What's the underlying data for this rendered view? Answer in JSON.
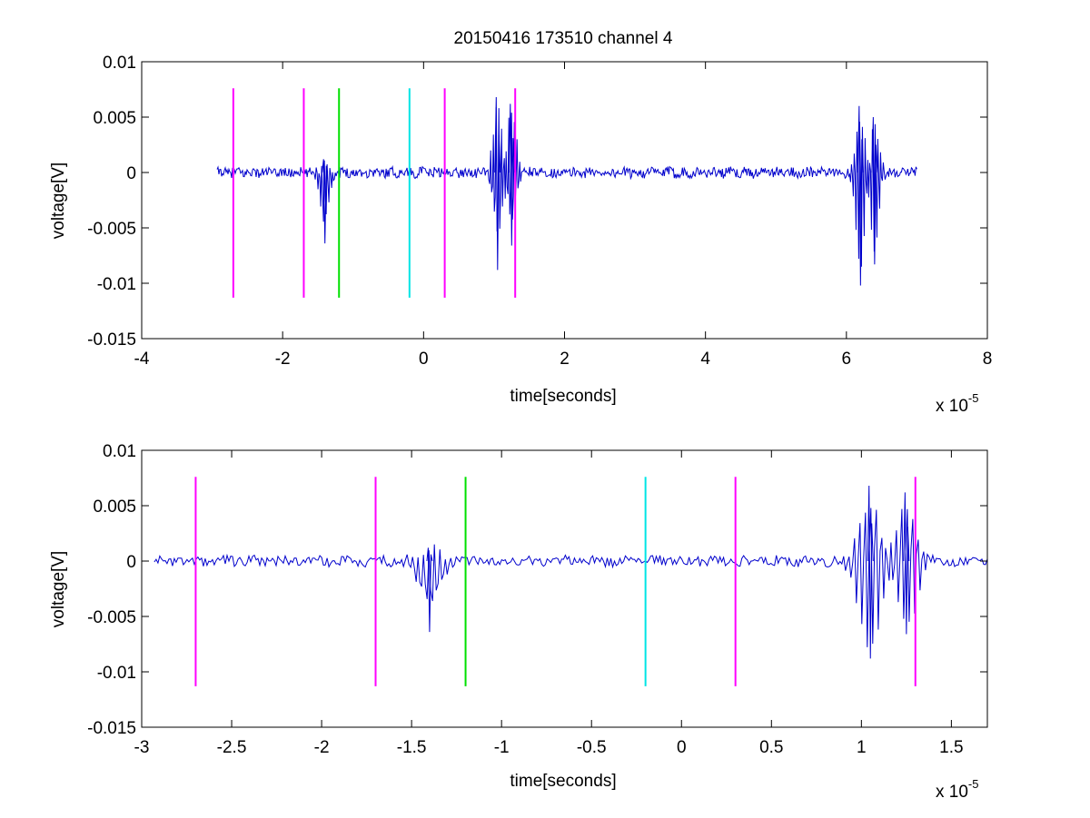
{
  "title": "20150416 173510 channel 4",
  "colors": {
    "signal": "#0000cc",
    "magenta": "#ff00ff",
    "green": "#00e000",
    "cyan": "#00e5e5",
    "axis": "#000000"
  },
  "chart_data": [
    {
      "type": "line",
      "title": "20150416 173510 channel 4",
      "xlabel": "time[seconds]",
      "ylabel": "voltage[V]",
      "x_multiplier_label": "x 10",
      "x_multiplier_exp": "-5",
      "xlim": [
        -4e-05,
        8e-05
      ],
      "ylim": [
        -0.015,
        0.01
      ],
      "xticks": [
        -4,
        -2,
        0,
        2,
        4,
        6,
        8
      ],
      "xtick_labels": [
        "-4",
        "-2",
        "0",
        "2",
        "4",
        "6",
        "8"
      ],
      "yticks": [
        0.01,
        0.005,
        0,
        -0.005,
        -0.01,
        -0.015
      ],
      "ytick_labels": [
        "0.01",
        "0.005",
        "0",
        "-0.005",
        "-0.01",
        "-0.015"
      ],
      "grid": false,
      "series": [
        {
          "values_x_range": [
            -2.93e-05,
            7e-05
          ],
          "bursts": [
            {
              "x": -1.4e-05,
              "min": -0.0064,
              "max": 0.0012
            },
            {
              "x": 1.05e-05,
              "min": -0.0088,
              "max": 0.0068
            },
            {
              "x": 1.25e-05,
              "min": -0.0066,
              "max": 0.0062
            },
            {
              "x": 6.2e-05,
              "min": -0.0102,
              "max": 0.006
            },
            {
              "x": 6.4e-05,
              "min": -0.0083,
              "max": 0.005
            }
          ]
        }
      ],
      "vlines": [
        {
          "x": -2.7e-05,
          "color": "magenta"
        },
        {
          "x": -1.7e-05,
          "color": "magenta"
        },
        {
          "x": -1.2e-05,
          "color": "green"
        },
        {
          "x": -2e-06,
          "color": "cyan"
        },
        {
          "x": 3e-06,
          "color": "magenta"
        },
        {
          "x": 1.3e-05,
          "color": "magenta"
        }
      ],
      "vline_range": [
        -0.0113,
        0.0076
      ]
    },
    {
      "type": "line",
      "xlabel": "time[seconds]",
      "ylabel": "voltage[V]",
      "x_multiplier_label": "x 10",
      "x_multiplier_exp": "-5",
      "xlim": [
        -3e-05,
        1.7e-05
      ],
      "ylim": [
        -0.015,
        0.01
      ],
      "xticks": [
        -3,
        -2.5,
        -2,
        -1.5,
        -1,
        -0.5,
        0,
        0.5,
        1,
        1.5
      ],
      "xtick_labels": [
        "-3",
        "-2.5",
        "-2",
        "-1.5",
        "-1",
        "-0.5",
        "0",
        "0.5",
        "1",
        "1.5"
      ],
      "yticks": [
        0.01,
        0.005,
        0,
        -0.005,
        -0.01,
        -0.015
      ],
      "ytick_labels": [
        "0.01",
        "0.005",
        "0",
        "-0.005",
        "-0.01",
        "-0.015"
      ],
      "grid": false,
      "series": [
        {
          "values_x_range": [
            -2.93e-05,
            1.7e-05
          ],
          "bursts": [
            {
              "x": -1.4e-05,
              "min": -0.0064,
              "max": 0.0012
            },
            {
              "x": 1.05e-05,
              "min": -0.0088,
              "max": 0.0068
            },
            {
              "x": 1.25e-05,
              "min": -0.0066,
              "max": 0.0062
            }
          ]
        }
      ],
      "vlines": [
        {
          "x": -2.7e-05,
          "color": "magenta"
        },
        {
          "x": -1.7e-05,
          "color": "magenta"
        },
        {
          "x": -1.2e-05,
          "color": "green"
        },
        {
          "x": -2e-06,
          "color": "cyan"
        },
        {
          "x": 3e-06,
          "color": "magenta"
        },
        {
          "x": 1.3e-05,
          "color": "magenta"
        }
      ],
      "vline_range": [
        -0.0113,
        0.0076
      ]
    }
  ]
}
